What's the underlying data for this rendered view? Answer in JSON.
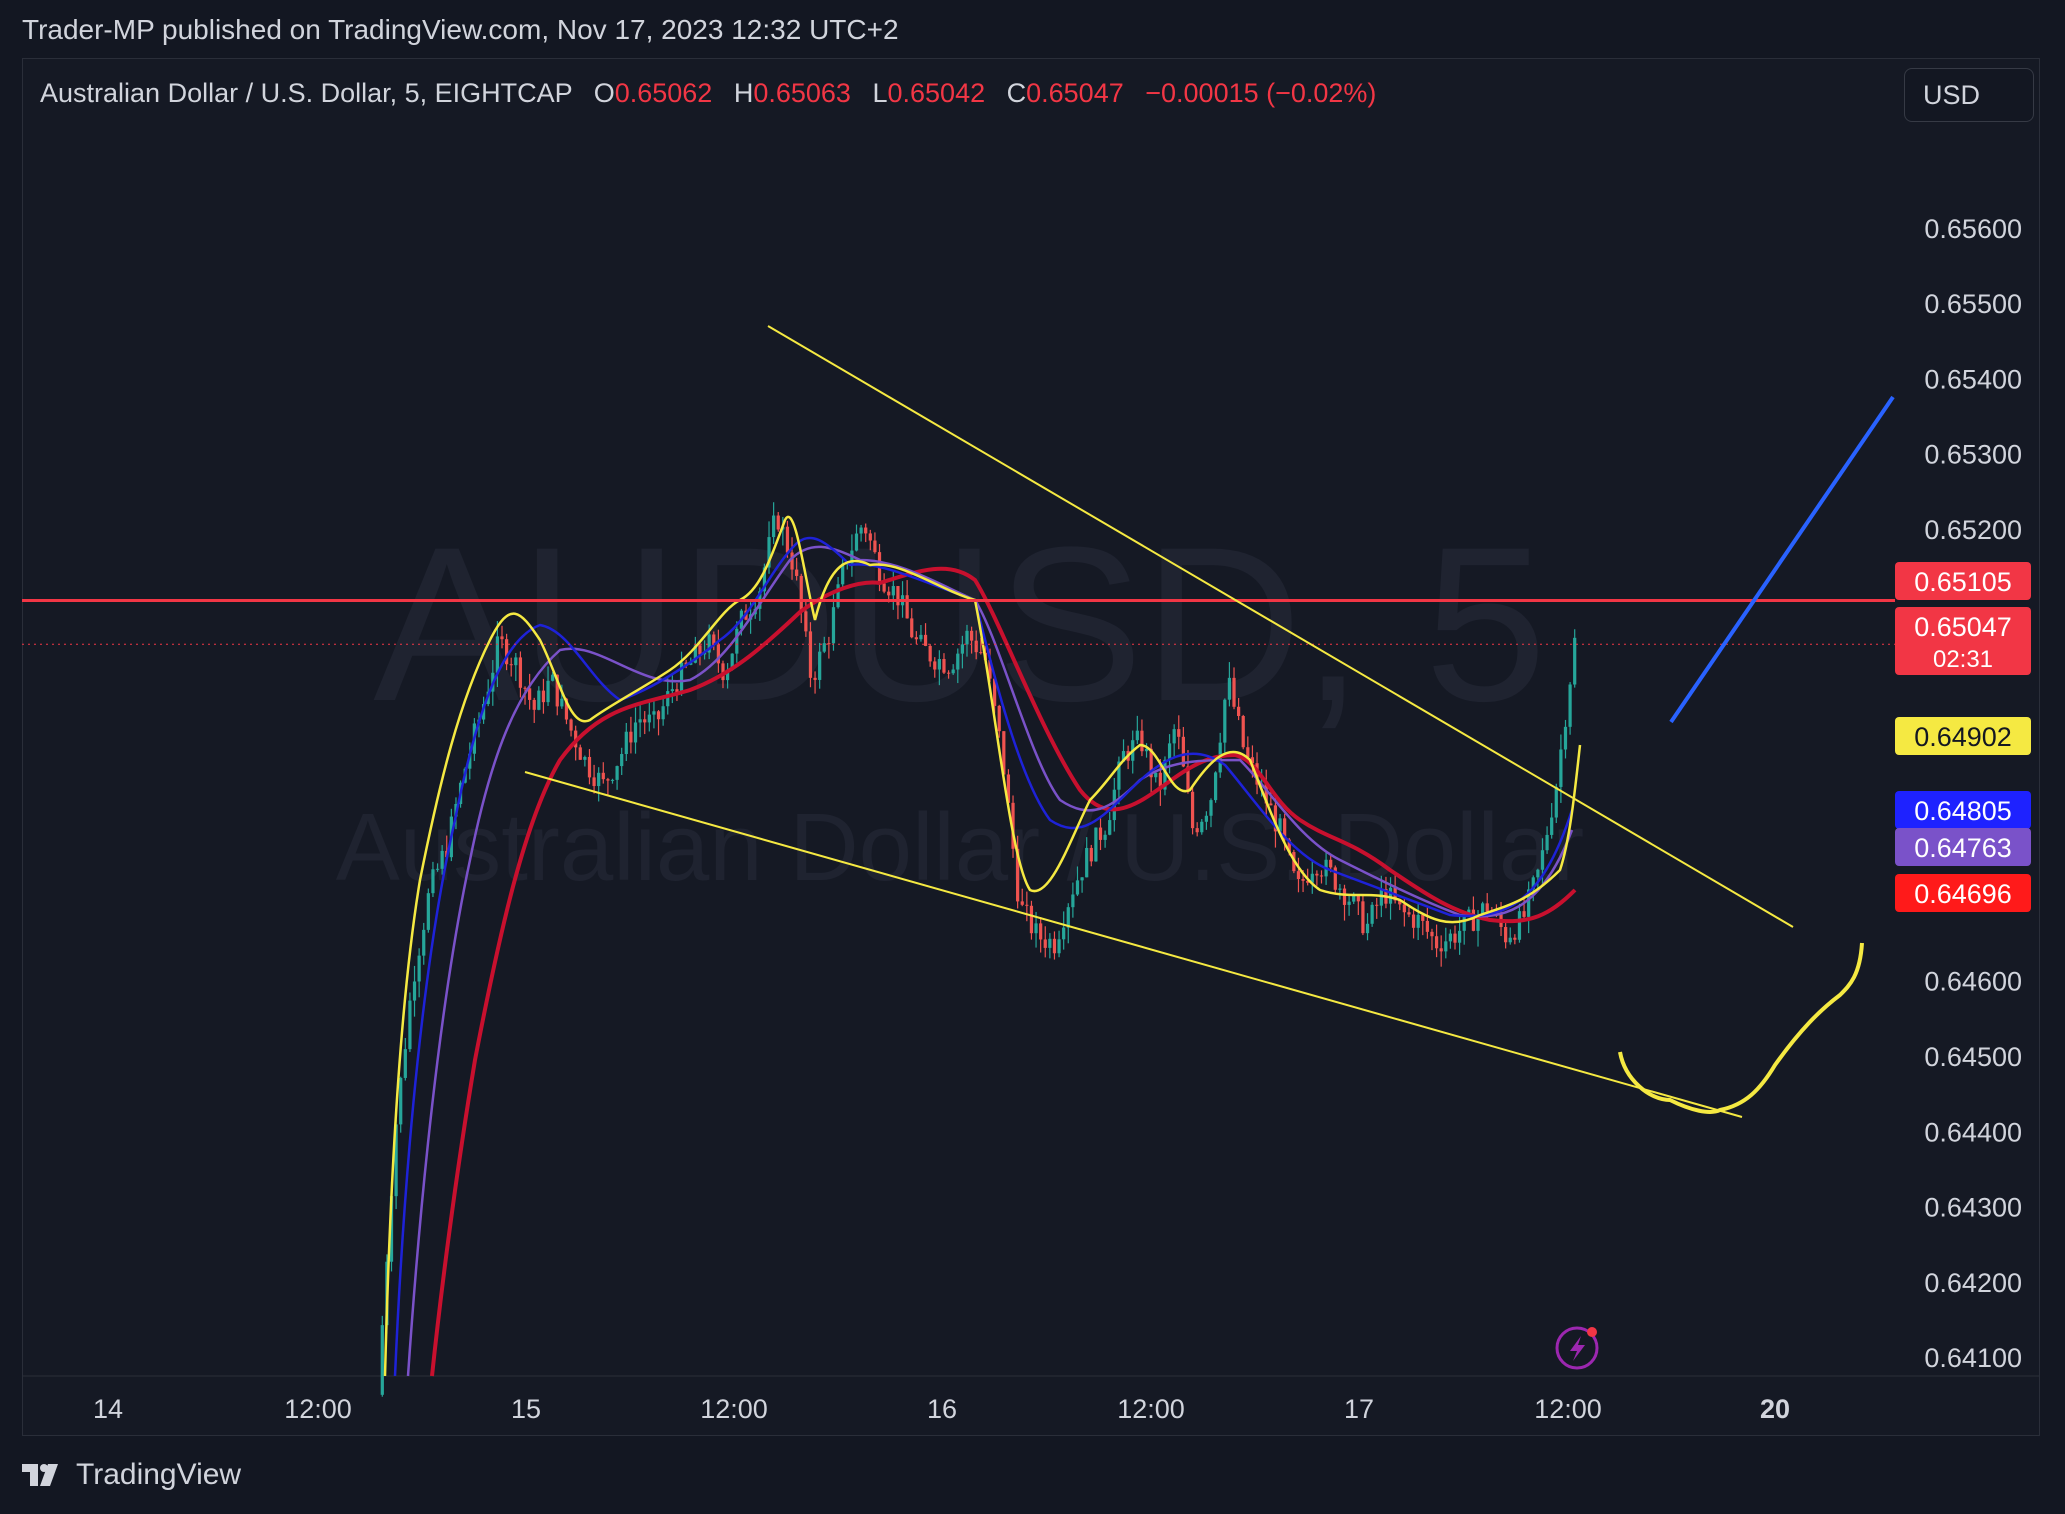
{
  "publisher_line": "Trader-MP published on TradingView.com, Nov 17, 2023 12:32 UTC+2",
  "legend": {
    "symbol": "Australian Dollar / U.S. Dollar, 5, EIGHTCAP",
    "o_label": "O",
    "o_value": "0.65062",
    "h_label": "H",
    "h_value": "0.65063",
    "l_label": "L",
    "l_value": "0.65042",
    "c_label": "C",
    "c_value": "0.65047",
    "change": "−0.00015 (−0.02%)"
  },
  "currency_button": "USD",
  "watermark": {
    "ticker": "AUDUSD, 5",
    "name": "Australian Dollar / U.S. Dollar"
  },
  "footer_brand": "TradingView",
  "colors": {
    "background": "#131722",
    "up": "#26a69a",
    "down": "#ef5350",
    "trendline": "#f5e942",
    "hline": "#f23645",
    "ma_fast": "#f5e942",
    "ma_blue": "#1e22d8",
    "ma_purple": "#7a52c9",
    "ma_red": "#c8102e",
    "projection": "#2962ff"
  },
  "chart_data": {
    "type": "candlestick",
    "symbol": "AUDUSD",
    "timeframe": "5",
    "ylim": [
      0.64075,
      0.6573
    ],
    "y_ticks": [
      "0.65600",
      "0.65500",
      "0.65400",
      "0.65300",
      "0.65200",
      "0.64600",
      "0.64500",
      "0.64400",
      "0.64300",
      "0.64200",
      "0.64100"
    ],
    "x_ticks": [
      "14",
      "12:00",
      "15",
      "12:00",
      "16",
      "12:00",
      "17",
      "12:00",
      "20"
    ],
    "price_labels": [
      {
        "value": "0.65105",
        "sub": "",
        "bg": "#f23645",
        "fg": "#ffffff"
      },
      {
        "value": "0.65047",
        "sub": "02:31",
        "bg": "#f23645",
        "fg": "#ffffff"
      },
      {
        "value": "0.64902",
        "sub": "",
        "bg": "#f5e942",
        "fg": "#131722"
      },
      {
        "value": "0.64805",
        "sub": "",
        "bg": "#1e22ff",
        "fg": "#ffffff"
      },
      {
        "value": "0.64763",
        "sub": "",
        "bg": "#7a52c9",
        "fg": "#ffffff"
      },
      {
        "value": "0.64696",
        "sub": "",
        "bg": "#ff1a1a",
        "fg": "#ffffff"
      }
    ],
    "horizontal_line": 0.65105,
    "last_price": 0.65047,
    "close_path": [
      [
        0,
        0.6405
      ],
      [
        2,
        0.644
      ],
      [
        4,
        0.646
      ],
      [
        6,
        0.6472
      ],
      [
        8,
        0.6478
      ],
      [
        10,
        0.6488
      ],
      [
        12,
        0.6496
      ],
      [
        14,
        0.6505
      ],
      [
        16,
        0.6502
      ],
      [
        18,
        0.6496
      ],
      [
        20,
        0.65
      ],
      [
        22,
        0.6494
      ],
      [
        24,
        0.6489
      ],
      [
        26,
        0.6486
      ],
      [
        28,
        0.649
      ],
      [
        30,
        0.6495
      ],
      [
        32,
        0.6494
      ],
      [
        34,
        0.6499
      ],
      [
        36,
        0.6502
      ],
      [
        38,
        0.6505
      ],
      [
        40,
        0.6501
      ],
      [
        42,
        0.6508
      ],
      [
        44,
        0.6512
      ],
      [
        46,
        0.6522
      ],
      [
        48,
        0.6515
      ],
      [
        50,
        0.65
      ],
      [
        52,
        0.6506
      ],
      [
        54,
        0.6516
      ],
      [
        56,
        0.6521
      ],
      [
        58,
        0.6514
      ],
      [
        60,
        0.6511
      ],
      [
        62,
        0.6505
      ],
      [
        64,
        0.6503
      ],
      [
        66,
        0.6502
      ],
      [
        68,
        0.6506
      ],
      [
        70,
        0.6503
      ],
      [
        72,
        0.649
      ],
      [
        74,
        0.647
      ],
      [
        76,
        0.6466
      ],
      [
        78,
        0.6465
      ],
      [
        80,
        0.6472
      ],
      [
        82,
        0.6477
      ],
      [
        84,
        0.6481
      ],
      [
        86,
        0.649
      ],
      [
        88,
        0.6492
      ],
      [
        90,
        0.6485
      ],
      [
        92,
        0.6494
      ],
      [
        94,
        0.648
      ],
      [
        96,
        0.6484
      ],
      [
        98,
        0.65
      ],
      [
        100,
        0.649
      ],
      [
        102,
        0.6485
      ],
      [
        104,
        0.648
      ],
      [
        106,
        0.6472
      ],
      [
        108,
        0.6476
      ],
      [
        110,
        0.6474
      ],
      [
        112,
        0.6471
      ],
      [
        114,
        0.6467
      ],
      [
        116,
        0.6472
      ],
      [
        118,
        0.6469
      ],
      [
        120,
        0.6468
      ],
      [
        122,
        0.6465
      ],
      [
        124,
        0.6466
      ],
      [
        126,
        0.6468
      ],
      [
        128,
        0.647
      ],
      [
        130,
        0.6466
      ],
      [
        132,
        0.6468
      ],
      [
        134,
        0.6475
      ],
      [
        136,
        0.6487
      ],
      [
        138,
        0.6505
      ]
    ],
    "moving_averages": [
      {
        "period_hint": "fast",
        "color": "#f5e942"
      },
      {
        "period_hint": "mid",
        "color": "#1e22d8"
      },
      {
        "period_hint": "slow",
        "color": "#7a52c9"
      },
      {
        "period_hint": "slowest",
        "color": "#c8102e"
      }
    ],
    "drawings": [
      {
        "type": "trendline",
        "color": "#f5e942",
        "from": [
          0.6543,
          "Nov 15 11:00"
        ],
        "to": [
          0.6461,
          "Nov 17 23:00"
        ]
      },
      {
        "type": "trendline",
        "color": "#f5e942",
        "from": [
          0.6485,
          "Nov 15"
        ],
        "to": [
          0.644,
          "Nov 17 22:00"
        ]
      },
      {
        "type": "projection_line",
        "color": "#2962ff"
      },
      {
        "type": "projection_curve",
        "color": "#f5e942"
      }
    ]
  }
}
